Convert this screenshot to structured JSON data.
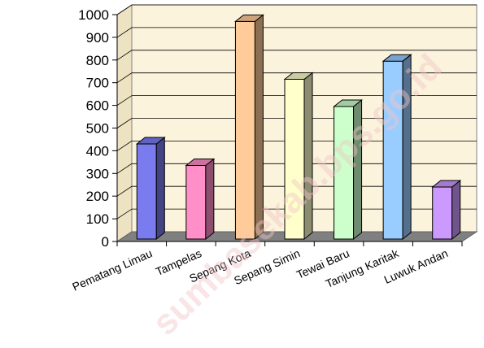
{
  "chart_data": {
    "type": "bar",
    "title": "",
    "xlabel": "",
    "ylabel": "",
    "categories": [
      "Pematang Limau",
      "Tampelas",
      "Sepang Kota",
      "Sepang Simin",
      "Tewai Baru",
      "Tanjung Karitak",
      "Luwuk Andan"
    ],
    "values": [
      430,
      335,
      970,
      715,
      595,
      795,
      240
    ],
    "colors": [
      "#7b7bf0",
      "#ff8fc8",
      "#ffcc99",
      "#ffffcc",
      "#ccffcc",
      "#99ccff",
      "#cc99ff"
    ],
    "ylim": [
      0,
      1000
    ],
    "yticks": [
      0,
      100,
      200,
      300,
      400,
      500,
      600,
      700,
      800,
      900,
      1000
    ],
    "grid": true,
    "legend": "none",
    "style": "3d-bar",
    "wall_color": "#fbf3dc",
    "floor_color": "#808080"
  },
  "watermark": "sumbasekab.bps.go.id"
}
